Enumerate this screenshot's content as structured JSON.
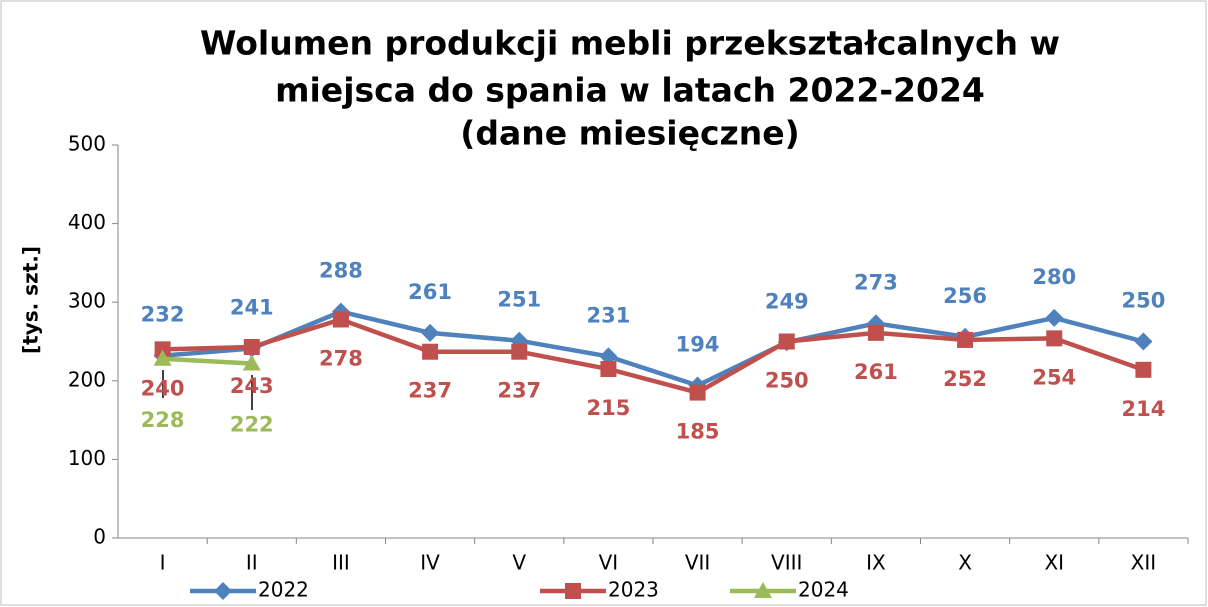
{
  "chart_data": {
    "type": "line",
    "title": [
      "Wolumen produkcji mebli przekształcalnych w",
      "miejsca do spania w latach 2022-2024",
      "(dane miesięczne)"
    ],
    "y_label": "[tys. szt.]",
    "categories": [
      "I",
      "II",
      "III",
      "IV",
      "V",
      "VI",
      "VII",
      "VIII",
      "IX",
      "X",
      "XI",
      "XII"
    ],
    "series": [
      {
        "name": "2022",
        "color": "#4f81bd",
        "marker": "diamond",
        "label_position": "above",
        "values": [
          232,
          241,
          288,
          261,
          251,
          231,
          194,
          249,
          273,
          256,
          280,
          250
        ]
      },
      {
        "name": "2023",
        "color": "#c0504d",
        "marker": "square",
        "label_position": "below",
        "values": [
          240,
          243,
          278,
          237,
          237,
          215,
          185,
          250,
          261,
          252,
          254,
          214
        ]
      },
      {
        "name": "2024",
        "color": "#9bbb59",
        "marker": "triangle",
        "label_position": "far-below",
        "values": [
          228,
          222,
          null,
          null,
          null,
          null,
          null,
          null,
          null,
          null,
          null,
          null
        ]
      }
    ],
    "ylim": [
      0,
      500
    ],
    "yticks": [
      0,
      100,
      200,
      300,
      400,
      500
    ],
    "grid": false,
    "legend": "bottom"
  }
}
